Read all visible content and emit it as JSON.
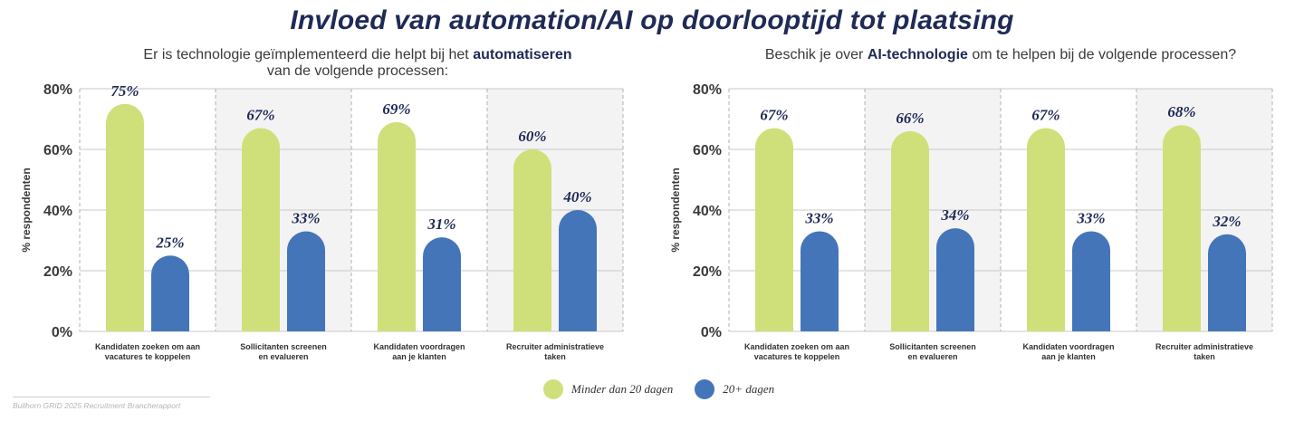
{
  "title": "Invloed van automation/AI op doorlooptijd tot plaatsing",
  "source": "Bullhorn GRID 2025 Recruitment Brancherapport",
  "colors": {
    "green": "#cfe07a",
    "blue": "#4575b9",
    "panel": "#f3f3f3",
    "grid": "#c8c8c8",
    "label": "#1f2a56"
  },
  "subtitles": {
    "left": {
      "pre": "Er is technologie geïmplementeerd die helpt bij het ",
      "bold": "automatiseren",
      "post": "van de volgende processen:"
    },
    "right": {
      "pre": "Beschik je over ",
      "bold": "AI-technologie",
      "post": " om te helpen bij de volgende processen?"
    }
  },
  "legend": [
    {
      "label": "Minder dan 20 dagen",
      "color": "#cfe07a"
    },
    {
      "label": "20+ dagen",
      "color": "#4575b9"
    }
  ],
  "chart_data": [
    {
      "type": "bar",
      "title": "Er is technologie geïmplementeerd die helpt bij het automatiseren van de volgende processen:",
      "ylabel": "% respondenten",
      "xlabel": "",
      "ylim": [
        0,
        80
      ],
      "yticks": [
        "0%",
        "20%",
        "40%",
        "60%",
        "80%"
      ],
      "categories": [
        [
          "Kandidaten zoeken om aan",
          "vacatures te koppelen"
        ],
        [
          "Sollicitanten screenen",
          "en evalueren"
        ],
        [
          "Kandidaten voordragen",
          "aan je klanten"
        ],
        [
          "Recruiter administratieve",
          "taken"
        ]
      ],
      "series": [
        {
          "name": "Minder dan 20 dagen",
          "values": [
            75,
            67,
            69,
            60
          ],
          "labels": [
            "75%",
            "67%",
            "69%",
            "60%"
          ]
        },
        {
          "name": "20+ dagen",
          "values": [
            25,
            33,
            31,
            40
          ],
          "labels": [
            "25%",
            "33%",
            "31%",
            "40%"
          ]
        }
      ]
    },
    {
      "type": "bar",
      "title": "Beschik je over AI-technologie om te helpen bij de volgende processen?",
      "ylabel": "% respondenten",
      "xlabel": "",
      "ylim": [
        0,
        80
      ],
      "yticks": [
        "0%",
        "20%",
        "40%",
        "60%",
        "80%"
      ],
      "categories": [
        [
          "Kandidaten zoeken om aan",
          "vacatures te koppelen"
        ],
        [
          "Sollicitanten screenen",
          "en evalueren"
        ],
        [
          "Kandidaten voordragen",
          "aan je klanten"
        ],
        [
          "Recruiter administratieve",
          "taken"
        ]
      ],
      "series": [
        {
          "name": "Minder dan 20 dagen",
          "values": [
            67,
            66,
            67,
            68
          ],
          "labels": [
            "67%",
            "66%",
            "67%",
            "68%"
          ]
        },
        {
          "name": "20+ dagen",
          "values": [
            33,
            34,
            33,
            32
          ],
          "labels": [
            "33%",
            "34%",
            "33%",
            "32%"
          ]
        }
      ]
    }
  ]
}
